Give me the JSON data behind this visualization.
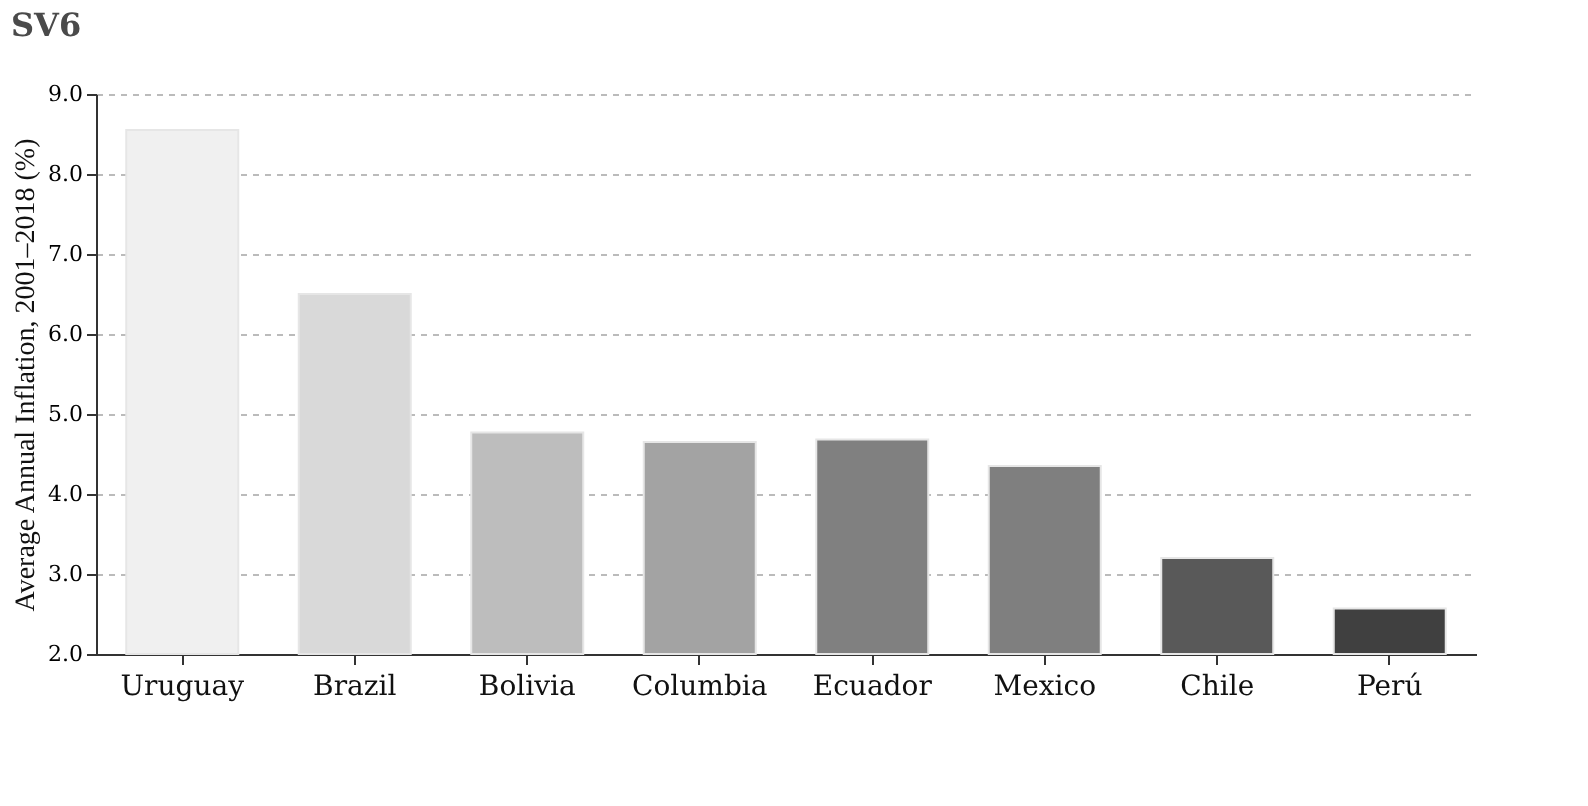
{
  "chart_data": {
    "type": "bar",
    "title": "SV6",
    "ylabel": "Average Annual Inflation, 2001–2018 (%)",
    "categories": [
      "Uruguay",
      "Brazil",
      "Bolivia",
      "Columbia",
      "Ecuador",
      "Mexico",
      "Chile",
      "Perú"
    ],
    "values": [
      8.55,
      6.5,
      4.77,
      4.65,
      4.68,
      4.35,
      3.2,
      2.57
    ],
    "colors": [
      "#f0f0f0",
      "#d9d9d9",
      "#bdbdbd",
      "#a3a3a3",
      "#808080",
      "#7f7f7f",
      "#595959",
      "#404040"
    ],
    "ylim": [
      2,
      9
    ],
    "yticks": [
      {
        "value": 2,
        "label": "2.0"
      },
      {
        "value": 3,
        "label": "3.0"
      },
      {
        "value": 4,
        "label": "4.0"
      },
      {
        "value": 5,
        "label": "5.0"
      },
      {
        "value": 6,
        "label": "6.0"
      },
      {
        "value": 7,
        "label": "7.0"
      },
      {
        "value": 8,
        "label": "8.0"
      },
      {
        "value": 9,
        "label": "9.0"
      }
    ],
    "grid": "y"
  }
}
